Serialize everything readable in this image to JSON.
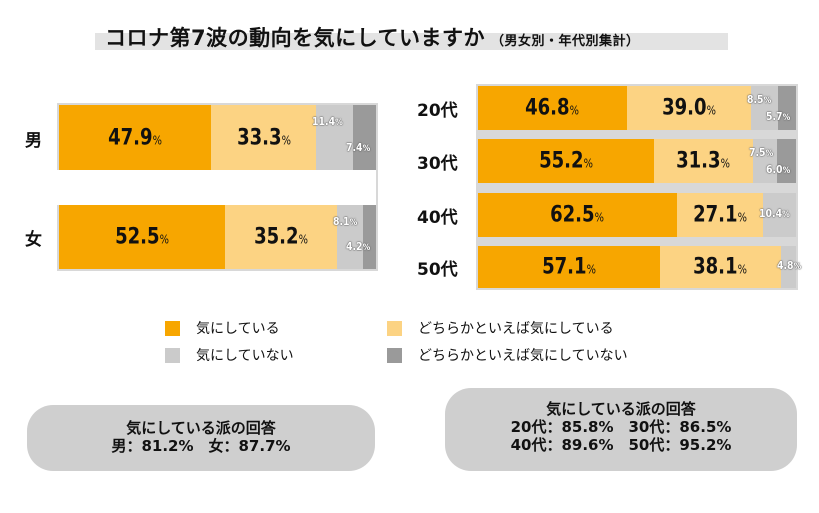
{
  "title": "コロナ第7波の動向を気にしていますか",
  "subtitle": "（男女別・年代別集計）",
  "colors": {
    "気にしている": "#f7a600",
    "どちらかといえば気にしている": "#fcd383",
    "気にしていない": "#cbcbcb",
    "どちらかといえば気にしていない": "#9a9a9a"
  },
  "chart_data": [
    {
      "type": "bar",
      "orientation": "horizontal",
      "stacked": true,
      "categories": [
        "男",
        "女"
      ],
      "series": [
        {
          "name": "気にしている",
          "values": [
            47.9,
            52.5
          ]
        },
        {
          "name": "どちらかといえば気にしている",
          "values": [
            33.3,
            35.2
          ]
        },
        {
          "name": "気にしていない",
          "values": [
            11.4,
            8.1
          ]
        },
        {
          "name": "どちらかといえば気にしていない",
          "values": [
            7.4,
            4.2
          ]
        }
      ]
    },
    {
      "type": "bar",
      "orientation": "horizontal",
      "stacked": true,
      "categories": [
        "20代",
        "30代",
        "40代",
        "50代"
      ],
      "series": [
        {
          "name": "気にしている",
          "values": [
            46.8,
            55.2,
            62.5,
            57.1
          ]
        },
        {
          "name": "どちらかといえば気にしている",
          "values": [
            39.0,
            31.3,
            27.1,
            38.1
          ]
        },
        {
          "name": "気にしていない",
          "values": [
            8.5,
            7.5,
            10.4,
            4.8
          ]
        },
        {
          "name": "どちらかといえば気にしていない",
          "values": [
            5.7,
            6.0,
            null,
            null
          ]
        }
      ]
    }
  ],
  "legend": [
    "気にしている",
    "どちらかといえば気にしている",
    "気にしていない",
    "どちらかといえば気にしていない"
  ],
  "summary_left": {
    "title": "気にしている派の回答",
    "line1": "男：81.2%　女：87.7%"
  },
  "summary_right": {
    "title": "気にしている派の回答",
    "line1": "20代：85.8%　30代：86.5%",
    "line2": "40代：89.6%　50代：95.2%"
  },
  "unit": "%"
}
